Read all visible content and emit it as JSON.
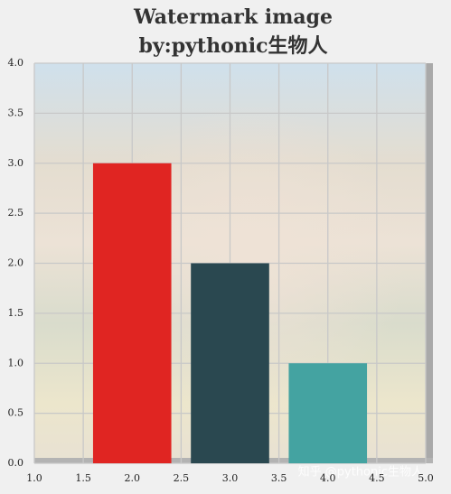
{
  "chart_data": {
    "type": "bar",
    "title": [
      "Watermark image",
      "by:pythonic生物人"
    ],
    "x": [
      2,
      3,
      4
    ],
    "values": [
      3,
      2,
      1
    ],
    "colors": [
      "#e02522",
      "#2a4850",
      "#44a3a1"
    ],
    "xlim": [
      1,
      5
    ],
    "ylim": [
      0,
      4
    ],
    "xticks": [
      {
        "value": 1,
        "label": "1.0"
      },
      {
        "value": 1.5,
        "label": "1.5"
      },
      {
        "value": 2,
        "label": "2.0"
      },
      {
        "value": 2.5,
        "label": "2.5"
      },
      {
        "value": 3,
        "label": "3.0"
      },
      {
        "value": 3.5,
        "label": "3.5"
      },
      {
        "value": 4,
        "label": "4.0"
      },
      {
        "value": 4.5,
        "label": "4.5"
      },
      {
        "value": 5,
        "label": "5.0"
      }
    ],
    "yticks": [
      {
        "value": 0,
        "label": "0.0"
      },
      {
        "value": 0.5,
        "label": "0.5"
      },
      {
        "value": 1,
        "label": "1.0"
      },
      {
        "value": 1.5,
        "label": "1.5"
      },
      {
        "value": 2,
        "label": "2.0"
      },
      {
        "value": 2.5,
        "label": "2.5"
      },
      {
        "value": 3,
        "label": "3.0"
      },
      {
        "value": 3.5,
        "label": "3.5"
      },
      {
        "value": 4,
        "label": "4.0"
      }
    ],
    "grid": true,
    "watermark": "知乎 @pythonic生物人"
  }
}
